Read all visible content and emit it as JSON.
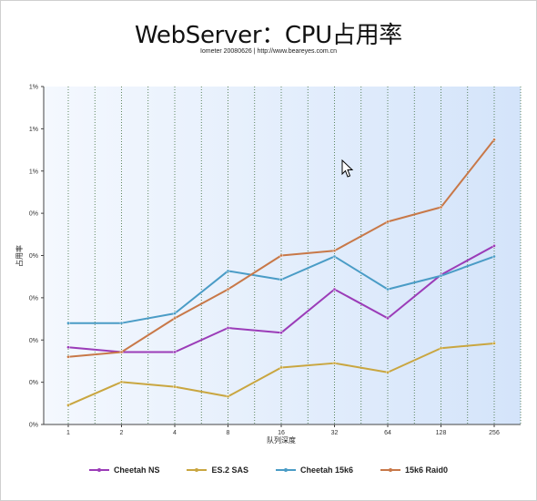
{
  "chart_data": {
    "type": "line",
    "title": "WebServer：CPU占用率",
    "subtitle": "Iometer 20080626 | http://www.beareyes.com.cn",
    "xlabel": "队列深度",
    "ylabel": "占用率",
    "categories": [
      "1",
      "2",
      "4",
      "8",
      "16",
      "32",
      "64",
      "128",
      "256"
    ],
    "y_tick_labels": [
      "0%",
      "0%",
      "0%",
      "0%",
      "0%",
      "0%",
      "1%",
      "1%",
      "1%"
    ],
    "ylim": [
      0,
      0.7
    ],
    "grid": "vertical dotted",
    "legend_position": "bottom",
    "series": [
      {
        "name": "Cheetah NS",
        "color": "#9b3cb8",
        "values": [
          0.16,
          0.15,
          0.15,
          0.2,
          0.19,
          0.28,
          0.22,
          0.31,
          0.37
        ]
      },
      {
        "name": "ES.2 SAS",
        "color": "#c9a640",
        "values": [
          0.04,
          0.088,
          0.078,
          0.058,
          0.118,
          0.127,
          0.108,
          0.158,
          0.168
        ]
      },
      {
        "name": "Cheetah 15k6",
        "color": "#4a9cc6",
        "values": [
          0.21,
          0.21,
          0.23,
          0.318,
          0.3,
          0.348,
          0.28,
          0.308,
          0.348
        ]
      },
      {
        "name": "15k6 Raid0",
        "color": "#c87848",
        "values": [
          0.14,
          0.15,
          0.22,
          0.28,
          0.35,
          0.36,
          0.42,
          0.45,
          0.59
        ]
      }
    ]
  }
}
